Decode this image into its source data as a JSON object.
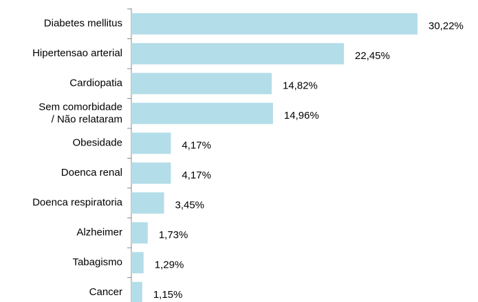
{
  "chart_data": {
    "type": "bar",
    "orientation": "horizontal",
    "categories": [
      "Diabetes mellitus",
      "Hipertensao arterial",
      "Cardiopatia",
      "Sem comorbidade\n/ Não relataram",
      "Obesidade",
      "Doenca renal",
      "Doenca respiratoria",
      "Alzheimer",
      "Tabagismo",
      "Cancer"
    ],
    "values": [
      30.22,
      22.45,
      14.82,
      14.96,
      4.17,
      4.17,
      3.45,
      1.73,
      1.29,
      1.15
    ],
    "value_labels": [
      "30,22%",
      "22,45%",
      "14,82%",
      "14,96%",
      "4,17%",
      "4,17%",
      "3,45%",
      "1,73%",
      "1,29%",
      "1,15%"
    ],
    "color": "#b3dde8"
  }
}
